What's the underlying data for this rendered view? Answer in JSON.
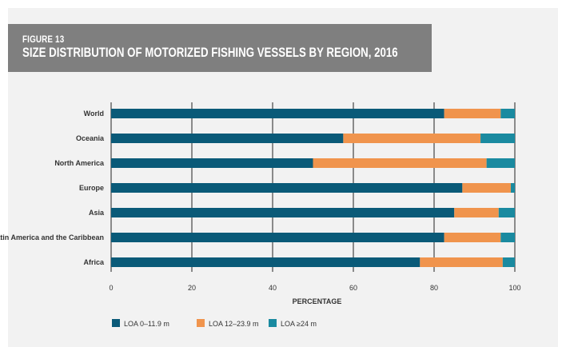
{
  "figure": {
    "label": "FIGURE 13",
    "title": "SIZE DISTRIBUTION OF MOTORIZED FISHING VESSELS BY REGION, 2016"
  },
  "chart_data": {
    "type": "bar",
    "orientation": "horizontal",
    "stacked": true,
    "categories": [
      "World",
      "Oceania",
      "North America",
      "Europe",
      "Asia",
      "Latin America and the Caribbean",
      "Africa"
    ],
    "series": [
      {
        "name": "LOA 0–11.9 m",
        "color": "#0a5a78",
        "values": [
          82.5,
          57.5,
          50,
          87,
          85,
          82.5,
          76.5
        ]
      },
      {
        "name": "LOA 12–23.9 m",
        "color": "#f0944d",
        "values": [
          14,
          34,
          43,
          12,
          11,
          14,
          20.5
        ]
      },
      {
        "name": "LOA ≥24 m",
        "color": "#1a8aa0",
        "values": [
          3.5,
          8.5,
          7,
          1,
          4,
          3.5,
          3
        ]
      }
    ],
    "xlabel": "PERCENTAGE",
    "xlim": [
      0,
      100
    ],
    "xticks": [
      0,
      20,
      40,
      60,
      80,
      100
    ],
    "grid": "vertical",
    "legend_position": "bottom"
  }
}
